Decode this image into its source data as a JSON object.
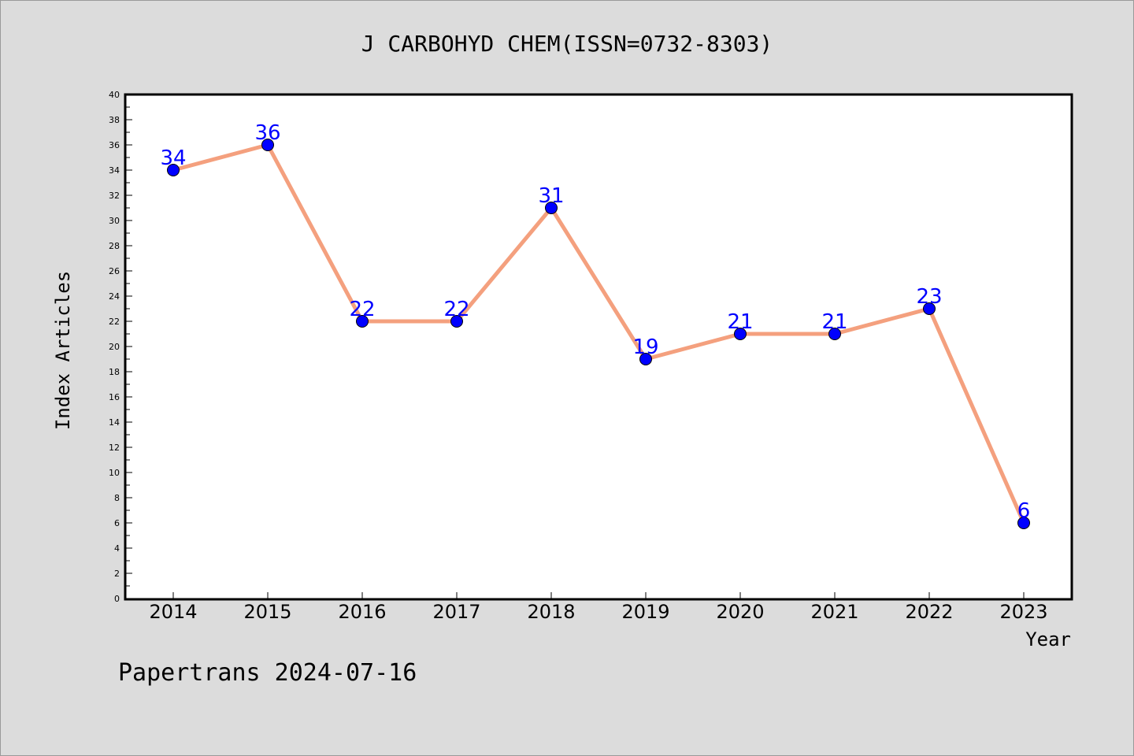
{
  "chart_data": {
    "type": "line",
    "title": "J CARBOHYD CHEM(ISSN=0732-8303)",
    "xlabel": "Year",
    "ylabel": "Index Articles",
    "categories": [
      "2014",
      "2015",
      "2016",
      "2017",
      "2018",
      "2019",
      "2020",
      "2021",
      "2022",
      "2023"
    ],
    "series": [
      {
        "values": [
          34,
          36,
          22,
          22,
          31,
          19,
          21,
          21,
          23,
          6
        ]
      }
    ],
    "ylim": [
      0,
      40
    ],
    "ytick_step": 2,
    "grid": false,
    "line_color": "#f4a07e",
    "marker_color": "#0000ff",
    "label_color": "#0000ff"
  },
  "footer": "Papertrans 2024-07-16"
}
